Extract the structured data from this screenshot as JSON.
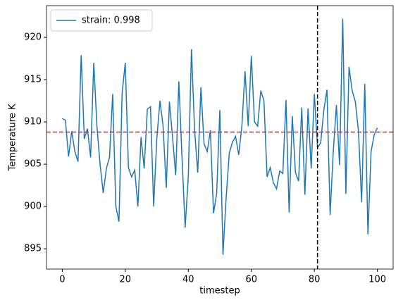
{
  "chart_data": {
    "type": "line",
    "x": [
      0,
      1,
      2,
      3,
      4,
      5,
      6,
      7,
      8,
      9,
      10,
      11,
      12,
      13,
      14,
      15,
      16,
      17,
      18,
      19,
      20,
      21,
      22,
      23,
      24,
      25,
      26,
      27,
      28,
      29,
      30,
      31,
      32,
      33,
      34,
      35,
      36,
      37,
      38,
      39,
      40,
      41,
      42,
      43,
      44,
      45,
      46,
      47,
      48,
      49,
      50,
      51,
      52,
      53,
      54,
      55,
      56,
      57,
      58,
      59,
      60,
      61,
      62,
      63,
      64,
      65,
      66,
      67,
      68,
      69,
      70,
      71,
      72,
      73,
      74,
      75,
      76,
      77,
      78,
      79,
      80,
      81,
      82,
      83,
      84,
      85,
      86,
      87,
      88,
      89,
      90,
      91,
      92,
      93,
      94,
      95,
      96,
      97,
      98,
      99,
      100
    ],
    "series": [
      {
        "name": "strain: 0.998",
        "color": "#1f77b4",
        "values": [
          910.4,
          910.2,
          905.9,
          908.9,
          906.5,
          905.3,
          917.9,
          908.0,
          909.2,
          905.8,
          917.0,
          909.5,
          905.0,
          901.6,
          904.5,
          905.8,
          913.3,
          900.0,
          898.2,
          913.4,
          917.0,
          904.6,
          903.5,
          904.3,
          900.0,
          908.2,
          904.5,
          911.5,
          911.8,
          900.0,
          908.0,
          912.5,
          909.5,
          902.2,
          912.4,
          908.2,
          903.7,
          914.8,
          905.8,
          897.5,
          903.5,
          918.6,
          909.0,
          904.0,
          914.1,
          907.4,
          906.5,
          909.0,
          899.2,
          901.5,
          911.4,
          894.3,
          901.0,
          906.3,
          907.6,
          908.3,
          906.1,
          909.5,
          916.0,
          909.5,
          917.8,
          910.0,
          909.5,
          913.7,
          912.5,
          903.5,
          904.6,
          902.8,
          902.1,
          904.2,
          903.9,
          912.6,
          899.3,
          910.7,
          904.0,
          903.0,
          911.7,
          901.4,
          911.6,
          904.5,
          913.3,
          907.0,
          907.5,
          911.4,
          913.8,
          899.0,
          906.5,
          912.0,
          904.9,
          922.2,
          901.5,
          916.5,
          913.7,
          912.4,
          908.9,
          900.5,
          914.5,
          896.7,
          906.5,
          908.5,
          909.3
        ]
      }
    ],
    "hline": {
      "value": 908.8,
      "color": "#d62728"
    },
    "vline": {
      "value": 81,
      "color": "#000000"
    },
    "xlabel": "timestep",
    "ylabel": "Temperature K",
    "xlim": [
      -5,
      105
    ],
    "ylim": [
      892.6,
      923.75
    ],
    "xticks": [
      0,
      20,
      40,
      60,
      80,
      100
    ],
    "yticks": [
      895,
      900,
      905,
      910,
      915,
      920
    ],
    "legend": "upper left"
  }
}
